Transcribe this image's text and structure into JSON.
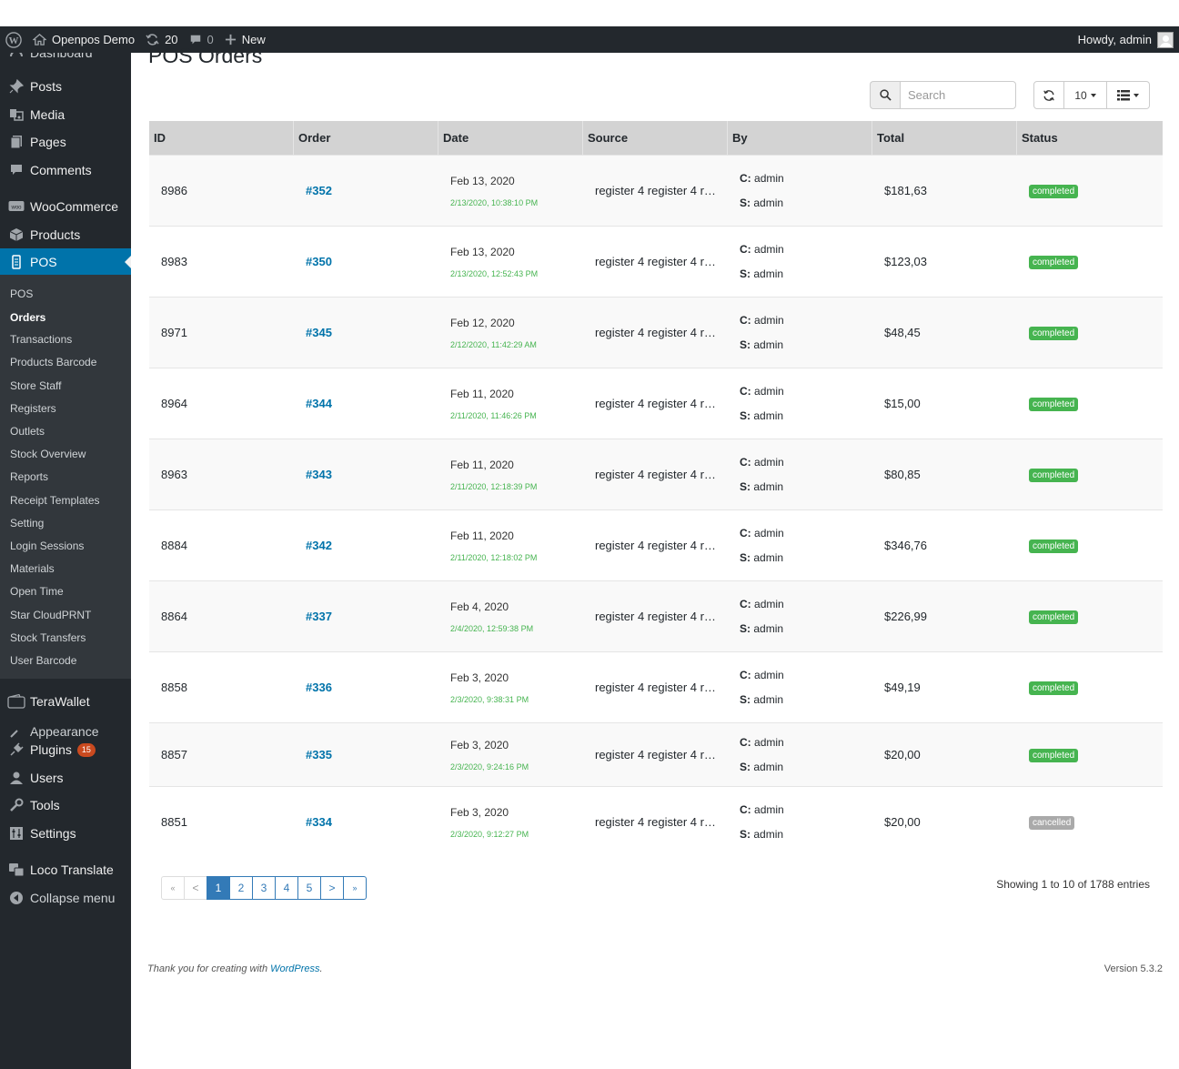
{
  "adminbar": {
    "site_name": "Openpos Demo",
    "updates_count": "20",
    "comments_count": "0",
    "new_label": "New",
    "howdy": "Howdy, admin"
  },
  "sidebar": {
    "items": [
      {
        "label": "Posts",
        "icon": "pin-icon"
      },
      {
        "label": "Media",
        "icon": "media-icon"
      },
      {
        "label": "Pages",
        "icon": "pages-icon"
      },
      {
        "label": "Comments",
        "icon": "comments-icon"
      },
      {
        "label": "WooCommerce",
        "icon": "woocommerce-icon"
      },
      {
        "label": "Products",
        "icon": "products-icon"
      },
      {
        "label": "POS",
        "icon": "pos-icon"
      },
      {
        "label": "TeraWallet",
        "icon": "wallet-icon"
      },
      {
        "label": "Plugins",
        "icon": "plugins-icon",
        "badge": "15"
      },
      {
        "label": "Users",
        "icon": "users-icon"
      },
      {
        "label": "Tools",
        "icon": "tools-icon"
      },
      {
        "label": "Settings",
        "icon": "settings-icon"
      },
      {
        "label": "Loco Translate",
        "icon": "translate-icon"
      },
      {
        "label": "Collapse menu",
        "icon": "collapse-icon"
      }
    ],
    "partial_top": "Dashboard",
    "partial_mid": "Appearance",
    "submenu": [
      "POS",
      "Orders",
      "Transactions",
      "Products Barcode",
      "Store Staff",
      "Registers",
      "Outlets",
      "Stock Overview",
      "Reports",
      "Receipt Templates",
      "Setting",
      "Login Sessions",
      "Materials",
      "Open Time",
      "Star CloudPRNT",
      "Stock Transfers",
      "User Barcode"
    ]
  },
  "main": {
    "title": "POS Orders",
    "search_placeholder": "Search",
    "page_size": "10",
    "columns": [
      "ID",
      "Order",
      "Date",
      "Source",
      "By",
      "Total",
      "Status"
    ],
    "by_c_label": "C:",
    "by_s_label": "S:",
    "rows": [
      {
        "id": "8986",
        "order": "#352",
        "date": "Feb 13, 2020",
        "datetime": "2/13/2020, 10:38:10 PM",
        "source": "register 4 register 4 r…",
        "c": "admin",
        "s": "admin",
        "total": "$181,63",
        "status": "completed"
      },
      {
        "id": "8983",
        "order": "#350",
        "date": "Feb 13, 2020",
        "datetime": "2/13/2020, 12:52:43 PM",
        "source": "register 4 register 4 r…",
        "c": "admin",
        "s": "admin",
        "total": "$123,03",
        "status": "completed"
      },
      {
        "id": "8971",
        "order": "#345",
        "date": "Feb 12, 2020",
        "datetime": "2/12/2020, 11:42:29 AM",
        "source": "register 4 register 4 r…",
        "c": "admin",
        "s": "admin",
        "total": "$48,45",
        "status": "completed"
      },
      {
        "id": "8964",
        "order": "#344",
        "date": "Feb 11, 2020",
        "datetime": "2/11/2020, 11:46:26 PM",
        "source": "register 4 register 4 r…",
        "c": "admin",
        "s": "admin",
        "total": "$15,00",
        "status": "completed"
      },
      {
        "id": "8963",
        "order": "#343",
        "date": "Feb 11, 2020",
        "datetime": "2/11/2020, 12:18:39 PM",
        "source": "register 4 register 4 r…",
        "c": "admin",
        "s": "admin",
        "total": "$80,85",
        "status": "completed"
      },
      {
        "id": "8884",
        "order": "#342",
        "date": "Feb 11, 2020",
        "datetime": "2/11/2020, 12:18:02 PM",
        "source": "register 4 register 4 r…",
        "c": "admin",
        "s": "admin",
        "total": "$346,76",
        "status": "completed"
      },
      {
        "id": "8864",
        "order": "#337",
        "date": "Feb 4, 2020",
        "datetime": "2/4/2020, 12:59:38 PM",
        "source": "register 4 register 4 r…",
        "c": "admin",
        "s": "admin",
        "total": "$226,99",
        "status": "completed"
      },
      {
        "id": "8858",
        "order": "#336",
        "date": "Feb 3, 2020",
        "datetime": "2/3/2020, 9:38:31 PM",
        "source": "register 4 register 4 r…",
        "c": "admin",
        "s": "admin",
        "total": "$49,19",
        "status": "completed"
      },
      {
        "id": "8857",
        "order": "#335",
        "date": "Feb 3, 2020",
        "datetime": "2/3/2020, 9:24:16 PM",
        "source": "register 4 register 4 r…",
        "c": "admin",
        "s": "admin",
        "total": "$20,00",
        "status": "completed"
      },
      {
        "id": "8851",
        "order": "#334",
        "date": "Feb 3, 2020",
        "datetime": "2/3/2020, 9:12:27 PM",
        "source": "register 4 register 4 r…",
        "c": "admin",
        "s": "admin",
        "total": "$20,00",
        "status": "cancelled"
      }
    ],
    "pagination": [
      "«",
      "<",
      "1",
      "2",
      "3",
      "4",
      "5",
      ">",
      "»"
    ],
    "showing": "Showing 1 to 10 of 1788 entries"
  },
  "footer": {
    "thanks_prefix": "Thank you for creating with",
    "thanks_link": "WordPress",
    "thanks_suffix": ".",
    "version": "Version 5.3.2"
  },
  "colors": {
    "completed": "#46b450",
    "cancelled": "#aaaaaa",
    "accent": "#0073aa"
  }
}
